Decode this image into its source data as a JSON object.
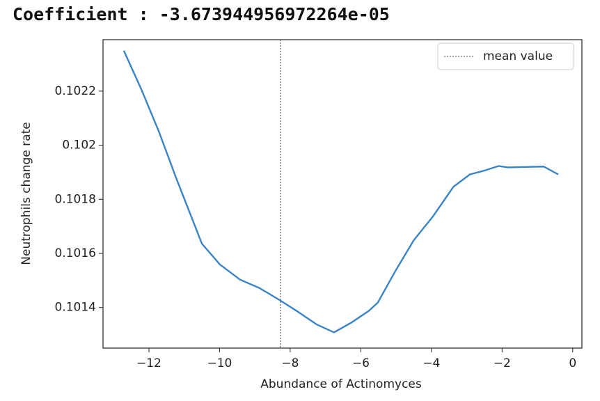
{
  "chart_data": {
    "type": "line",
    "title": "Coefficient : -3.673944956972264e-05",
    "x_label": "Abundance of Actinomyces",
    "y_label": "Neutrophils change rate",
    "series": [
      {
        "name": null,
        "color": "#3a84c4",
        "x": [
          -12.71,
          -12.22,
          -11.72,
          -11.23,
          -10.5,
          -9.99,
          -9.42,
          -8.87,
          -8.28,
          -7.79,
          -7.26,
          -6.76,
          -6.27,
          -5.78,
          -5.52,
          -5.03,
          -4.5,
          -3.95,
          -3.38,
          -2.91,
          -2.53,
          -2.1,
          -1.84,
          -0.82,
          -0.41
        ],
        "values": [
          0.102349,
          0.102208,
          0.102051,
          0.101879,
          0.101636,
          0.101559,
          0.101503,
          0.101472,
          0.101426,
          0.101385,
          0.101338,
          0.101308,
          0.101344,
          0.101387,
          0.101418,
          0.101533,
          0.101649,
          0.101738,
          0.101846,
          0.101892,
          0.101905,
          0.101923,
          0.101918,
          0.101921,
          0.101892
        ]
      }
    ],
    "vlines": [
      {
        "name": "mean value",
        "x": -8.28,
        "color": "#444"
      }
    ],
    "xlim": [
      -13.3,
      0.26
    ],
    "xticks": [
      {
        "value": -12,
        "label": "−12"
      },
      {
        "value": -10,
        "label": "−10"
      },
      {
        "value": -8,
        "label": "−8"
      },
      {
        "value": -6,
        "label": "−6"
      },
      {
        "value": -4,
        "label": "−4"
      },
      {
        "value": -2,
        "label": "−2"
      },
      0
    ],
    "ylim": [
      0.10125,
      0.10239
    ],
    "yticks": [
      0.1014,
      0.1016,
      0.1018,
      0.102,
      0.1022
    ],
    "legend": "upper right",
    "grid": false
  }
}
